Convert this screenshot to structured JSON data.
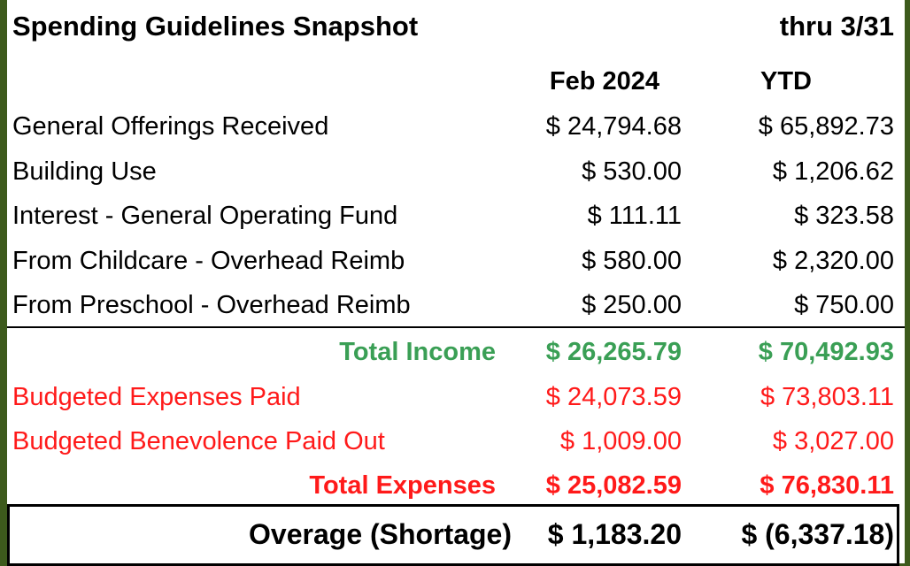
{
  "header": {
    "title": "Spending Guidelines Snapshot",
    "period": "thru 3/31"
  },
  "columns": [
    "Feb 2024",
    "YTD"
  ],
  "income": [
    {
      "label": "General Offerings Received",
      "values": [
        "$ 24,794.68",
        "$ 65,892.73"
      ]
    },
    {
      "label": "Building Use",
      "values": [
        "$ 530.00",
        "$ 1,206.62"
      ]
    },
    {
      "label": "Interest - General Operating Fund",
      "values": [
        "$ 111.11",
        "$ 323.58"
      ]
    },
    {
      "label": "From Childcare - Overhead Reimb",
      "values": [
        "$ 580.00",
        "$ 2,320.00"
      ]
    },
    {
      "label": "From Preschool - Overhead Reimb",
      "values": [
        "$ 250.00",
        "$ 750.00"
      ]
    }
  ],
  "total_income": {
    "label": "Total Income",
    "values": [
      "$ 26,265.79",
      "$ 70,492.93"
    ]
  },
  "expenses": [
    {
      "label": "Budgeted Expenses Paid",
      "values": [
        "$ 24,073.59",
        "$ 73,803.11"
      ]
    },
    {
      "label": "Budgeted Benevolence Paid Out",
      "values": [
        "$ 1,009.00",
        "$ 3,027.00"
      ]
    }
  ],
  "total_expenses": {
    "label": "Total Expenses",
    "values": [
      "$ 25,082.59",
      "$ 76,830.11"
    ]
  },
  "overage": {
    "label": "Overage (Shortage)",
    "values": [
      "$ 1,183.20",
      "$ (6,337.18)"
    ]
  }
}
